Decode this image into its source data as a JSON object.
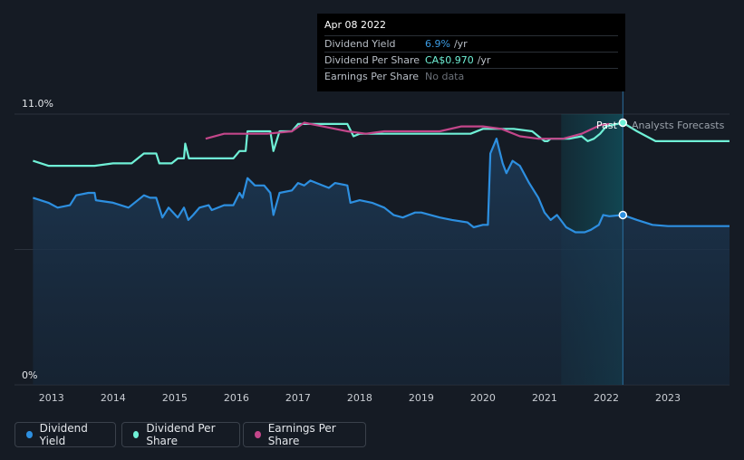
{
  "chart_data": {
    "type": "line",
    "x_axis": {
      "ticks": [
        "2013",
        "2014",
        "2015",
        "2016",
        "2017",
        "2018",
        "2019",
        "2020",
        "2021",
        "2022",
        "2023"
      ]
    },
    "y_axis": {
      "labels": [
        "11.0%",
        "0%"
      ],
      "range": [
        0,
        11.0
      ]
    },
    "forecast_labels": {
      "past": "Past",
      "forecast": "Analysts Forecasts"
    },
    "tooltip": {
      "date": "Apr 08 2022",
      "rows": [
        {
          "label": "Dividend Yield",
          "value": "6.9%",
          "unit": "/yr",
          "color": "#3b9ce4"
        },
        {
          "label": "Dividend Per Share",
          "value": "CA$0.970",
          "unit": "/yr",
          "color": "#6ff0d6"
        },
        {
          "label": "Earnings Per Share",
          "value": "No data",
          "unit": "",
          "color": "#6b7078"
        }
      ]
    },
    "series": [
      {
        "name": "Dividend Yield",
        "color": "#2d8fe0",
        "points": [
          [
            2012.7,
            7.6
          ],
          [
            2012.95,
            7.4
          ],
          [
            2013.1,
            7.2
          ],
          [
            2013.3,
            7.3
          ],
          [
            2013.4,
            7.7
          ],
          [
            2013.6,
            7.8
          ],
          [
            2013.7,
            7.8
          ],
          [
            2013.72,
            7.5
          ],
          [
            2014.0,
            7.4
          ],
          [
            2014.25,
            7.2
          ],
          [
            2014.5,
            7.7
          ],
          [
            2014.6,
            7.6
          ],
          [
            2014.7,
            7.6
          ],
          [
            2014.8,
            6.8
          ],
          [
            2014.9,
            7.2
          ],
          [
            2015.05,
            6.8
          ],
          [
            2015.15,
            7.2
          ],
          [
            2015.22,
            6.7
          ],
          [
            2015.3,
            6.9
          ],
          [
            2015.4,
            7.2
          ],
          [
            2015.55,
            7.3
          ],
          [
            2015.6,
            7.1
          ],
          [
            2015.8,
            7.3
          ],
          [
            2015.95,
            7.3
          ],
          [
            2016.05,
            7.8
          ],
          [
            2016.1,
            7.6
          ],
          [
            2016.18,
            8.4
          ],
          [
            2016.3,
            8.1
          ],
          [
            2016.45,
            8.1
          ],
          [
            2016.55,
            7.8
          ],
          [
            2016.6,
            6.9
          ],
          [
            2016.7,
            7.8
          ],
          [
            2016.9,
            7.9
          ],
          [
            2017.0,
            8.2
          ],
          [
            2017.1,
            8.1
          ],
          [
            2017.2,
            8.3
          ],
          [
            2017.3,
            8.2
          ],
          [
            2017.5,
            8.0
          ],
          [
            2017.6,
            8.2
          ],
          [
            2017.8,
            8.1
          ],
          [
            2017.85,
            7.4
          ],
          [
            2018.0,
            7.5
          ],
          [
            2018.2,
            7.4
          ],
          [
            2018.4,
            7.2
          ],
          [
            2018.55,
            6.9
          ],
          [
            2018.7,
            6.8
          ],
          [
            2018.8,
            6.9
          ],
          [
            2018.9,
            7.0
          ],
          [
            2019.0,
            7.0
          ],
          [
            2019.15,
            6.9
          ],
          [
            2019.3,
            6.8
          ],
          [
            2019.5,
            6.7
          ],
          [
            2019.75,
            6.6
          ],
          [
            2019.85,
            6.4
          ],
          [
            2020.0,
            6.5
          ],
          [
            2020.08,
            6.5
          ],
          [
            2020.12,
            9.4
          ],
          [
            2020.22,
            10.0
          ],
          [
            2020.32,
            9.0
          ],
          [
            2020.38,
            8.6
          ],
          [
            2020.48,
            9.1
          ],
          [
            2020.6,
            8.9
          ],
          [
            2020.75,
            8.2
          ],
          [
            2020.9,
            7.6
          ],
          [
            2021.0,
            7.0
          ],
          [
            2021.1,
            6.7
          ],
          [
            2021.2,
            6.9
          ],
          [
            2021.35,
            6.4
          ],
          [
            2021.5,
            6.2
          ],
          [
            2021.65,
            6.2
          ],
          [
            2021.75,
            6.3
          ],
          [
            2021.88,
            6.5
          ],
          [
            2021.95,
            6.9
          ],
          [
            2022.05,
            6.85
          ],
          [
            2022.27,
            6.9
          ],
          [
            2022.5,
            6.7
          ],
          [
            2022.75,
            6.5
          ],
          [
            2023.0,
            6.45
          ],
          [
            2024.0,
            6.45
          ]
        ]
      },
      {
        "name": "Dividend Per Share",
        "color": "#6ff0d6",
        "points": [
          [
            2012.7,
            9.1
          ],
          [
            2012.95,
            8.9
          ],
          [
            2013.3,
            8.9
          ],
          [
            2013.5,
            8.9
          ],
          [
            2013.7,
            8.9
          ],
          [
            2014.0,
            9.0
          ],
          [
            2014.3,
            9.0
          ],
          [
            2014.5,
            9.4
          ],
          [
            2014.7,
            9.4
          ],
          [
            2014.75,
            9.0
          ],
          [
            2014.95,
            9.0
          ],
          [
            2015.05,
            9.2
          ],
          [
            2015.15,
            9.2
          ],
          [
            2015.17,
            9.8
          ],
          [
            2015.23,
            9.2
          ],
          [
            2015.6,
            9.2
          ],
          [
            2015.95,
            9.2
          ],
          [
            2016.05,
            9.5
          ],
          [
            2016.15,
            9.5
          ],
          [
            2016.18,
            10.3
          ],
          [
            2016.5,
            10.3
          ],
          [
            2016.55,
            10.3
          ],
          [
            2016.6,
            9.5
          ],
          [
            2016.7,
            10.3
          ],
          [
            2016.9,
            10.3
          ],
          [
            2017.0,
            10.6
          ],
          [
            2017.5,
            10.6
          ],
          [
            2017.8,
            10.6
          ],
          [
            2017.9,
            10.1
          ],
          [
            2018.0,
            10.2
          ],
          [
            2019.0,
            10.2
          ],
          [
            2019.8,
            10.2
          ],
          [
            2020.0,
            10.4
          ],
          [
            2020.5,
            10.4
          ],
          [
            2020.8,
            10.3
          ],
          [
            2020.95,
            10.0
          ],
          [
            2021.0,
            9.9
          ],
          [
            2021.05,
            9.9
          ],
          [
            2021.1,
            10.0
          ],
          [
            2021.4,
            10.0
          ],
          [
            2021.6,
            10.1
          ],
          [
            2021.7,
            9.9
          ],
          [
            2021.8,
            10.0
          ],
          [
            2021.9,
            10.2
          ],
          [
            2022.0,
            10.5
          ],
          [
            2022.27,
            10.65
          ],
          [
            2022.5,
            10.3
          ],
          [
            2022.8,
            9.9
          ],
          [
            2023.0,
            9.9
          ],
          [
            2024.0,
            9.9
          ]
        ]
      },
      {
        "name": "Earnings Per Share",
        "color": "#c3468a",
        "points": [
          [
            2015.5,
            10.0
          ],
          [
            2015.8,
            10.2
          ],
          [
            2016.0,
            10.2
          ],
          [
            2016.5,
            10.2
          ],
          [
            2016.9,
            10.3
          ],
          [
            2017.1,
            10.65
          ],
          [
            2017.4,
            10.5
          ],
          [
            2017.8,
            10.3
          ],
          [
            2018.1,
            10.2
          ],
          [
            2018.4,
            10.3
          ],
          [
            2018.8,
            10.3
          ],
          [
            2019.3,
            10.3
          ],
          [
            2019.65,
            10.5
          ],
          [
            2020.0,
            10.5
          ],
          [
            2020.3,
            10.4
          ],
          [
            2020.6,
            10.1
          ],
          [
            2020.9,
            10.0
          ],
          [
            2021.3,
            10.0
          ],
          [
            2021.6,
            10.2
          ],
          [
            2021.9,
            10.55
          ],
          [
            2022.05,
            10.6
          ]
        ]
      }
    ],
    "legend": [
      {
        "label": "Dividend Yield",
        "color": "#2d8fe0"
      },
      {
        "label": "Dividend Per Share",
        "color": "#6ff0d6"
      },
      {
        "label": "Earnings Per Share",
        "color": "#c3468a"
      }
    ],
    "grid": true,
    "highlight_date": 2022.27
  }
}
